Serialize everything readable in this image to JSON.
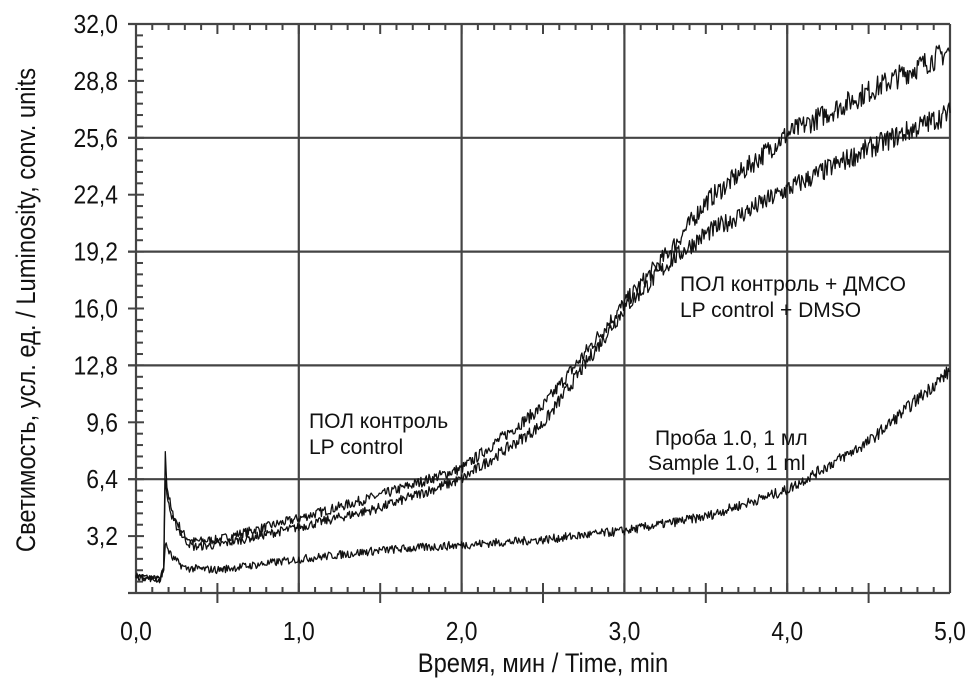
{
  "chart_data": {
    "type": "line",
    "title": "",
    "xlabel": "Время, мин / Time, min",
    "ylabel": "Светимость, усл. ед. / Luminosity, conv. units",
    "xlim": [
      0,
      5
    ],
    "ylim": [
      0,
      32
    ],
    "x_ticks": [
      "0,0",
      "1,0",
      "2,0",
      "3,0",
      "4,0",
      "5,0"
    ],
    "x_tick_values": [
      0,
      1,
      2,
      3,
      4,
      5
    ],
    "y_ticks": [
      "3,2",
      "6,4",
      "9,6",
      "12,8",
      "16,0",
      "19,2",
      "22,4",
      "25,6",
      "28,8",
      "32,0"
    ],
    "y_tick_values": [
      3.2,
      6.4,
      9.6,
      12.8,
      16.0,
      19.2,
      22.4,
      25.6,
      28.8,
      32.0
    ],
    "grid": true,
    "series": [
      {
        "name": "LP control + DMSO",
        "x": [
          0,
          0.15,
          0.17,
          0.18,
          0.19,
          0.22,
          0.3,
          0.35,
          0.5,
          1.0,
          1.5,
          2.0,
          2.5,
          3.0,
          3.3,
          3.5,
          4.0,
          4.5,
          5.0
        ],
        "y": [
          1.0,
          0.8,
          1.5,
          8.0,
          6.0,
          4.5,
          3.2,
          2.9,
          3.0,
          4.2,
          5.5,
          7.0,
          10.5,
          16.3,
          19.5,
          22.0,
          25.8,
          28.2,
          30.5
        ]
      },
      {
        "name": "LP control",
        "x": [
          0,
          0.15,
          0.17,
          0.18,
          0.19,
          0.22,
          0.3,
          0.35,
          0.5,
          1.0,
          1.5,
          2.0,
          2.5,
          3.0,
          3.3,
          3.5,
          4.0,
          4.5,
          5.0
        ],
        "y": [
          0.9,
          0.7,
          1.4,
          6.5,
          5.5,
          4.2,
          3.0,
          2.6,
          2.7,
          3.7,
          4.8,
          6.4,
          9.5,
          16.0,
          18.8,
          20.2,
          22.7,
          25.0,
          27.0
        ]
      },
      {
        "name": "Sample 1.0, 1 ml",
        "x": [
          0,
          0.15,
          0.17,
          0.18,
          0.22,
          0.3,
          0.5,
          1.0,
          1.5,
          2.0,
          2.5,
          3.0,
          3.5,
          4.0,
          4.5,
          5.0
        ],
        "y": [
          1.0,
          0.8,
          1.3,
          2.8,
          2.0,
          1.4,
          1.3,
          1.9,
          2.4,
          2.7,
          3.0,
          3.5,
          4.3,
          5.8,
          8.5,
          12.5
        ]
      }
    ],
    "annotations": [
      {
        "line1": "ПОЛ контроль + ДМСО",
        "line2": "LP control + DMSO"
      },
      {
        "line1": "ПОЛ контроль",
        "line2": "LP control"
      },
      {
        "line1": "Проба 1.0, 1 мл",
        "line2": "Sample 1.0, 1 ml"
      }
    ]
  }
}
